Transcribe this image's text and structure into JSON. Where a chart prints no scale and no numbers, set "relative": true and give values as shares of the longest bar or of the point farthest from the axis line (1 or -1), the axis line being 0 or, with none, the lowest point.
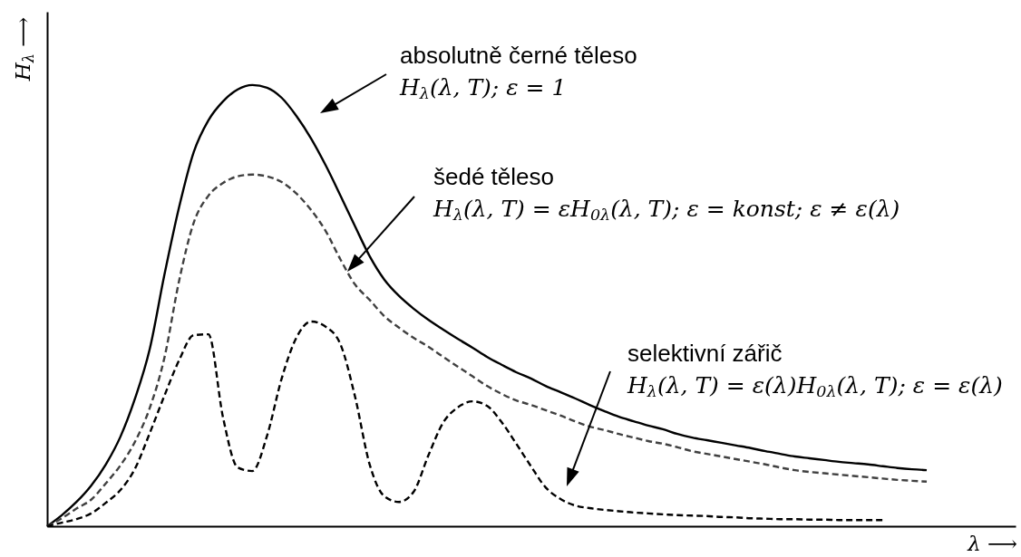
{
  "chart_data": {
    "type": "line",
    "relative": true,
    "xlabel": "λ ⟶",
    "ylabel": "H$_{λ}$ ⟶",
    "categories": [
      null,
      null,
      null,
      null,
      null,
      null,
      null,
      null,
      null,
      null,
      null,
      null,
      null,
      null,
      null,
      null,
      null,
      null,
      null,
      null,
      null,
      null,
      null,
      null,
      null,
      null,
      null,
      null,
      null,
      null,
      null,
      null,
      null,
      null,
      null,
      null,
      null,
      null,
      null,
      null,
      null,
      null,
      null,
      null,
      null,
      null,
      null,
      null,
      null,
      null,
      null,
      null,
      null,
      null,
      null,
      null,
      null,
      null,
      null,
      null,
      null
    ],
    "series": [
      {
        "color": "#000000",
        "line_style": "solid",
        "values": [
          0,
          0.025,
          0.055,
          0.092,
          0.14,
          0.203,
          0.29,
          0.402,
          0.57,
          0.723,
          0.848,
          0.92,
          0.963,
          0.99,
          1,
          0.994,
          0.971,
          0.93,
          0.879,
          0.818,
          0.75,
          0.68,
          0.612,
          0.559,
          0.522,
          0.493,
          0.468,
          0.446,
          0.425,
          0.405,
          0.384,
          0.366,
          0.349,
          0.335,
          0.318,
          0.304,
          0.29,
          0.275,
          0.261,
          0.248,
          0.238,
          0.228,
          0.22,
          0.209,
          0.201,
          0.195,
          0.189,
          0.183,
          0.177,
          0.17,
          0.164,
          0.158,
          0.154,
          0.15,
          0.146,
          0.143,
          0.14,
          0.136,
          0.132,
          0.129,
          0.127
        ]
      },
      {
        "color": "#404040",
        "line_style": "dashed",
        "values": [
          0,
          0.018,
          0.04,
          0.06,
          0.097,
          0.138,
          0.192,
          0.268,
          0.382,
          0.556,
          0.688,
          0.749,
          0.778,
          0.793,
          0.797,
          0.793,
          0.78,
          0.754,
          0.717,
          0.669,
          0.605,
          0.548,
          0.513,
          0.476,
          0.45,
          0.427,
          0.407,
          0.384,
          0.362,
          0.34,
          0.318,
          0.3,
          0.285,
          0.275,
          0.263,
          0.251,
          0.238,
          0.226,
          0.218,
          0.209,
          0.201,
          0.193,
          0.187,
          0.179,
          0.17,
          0.164,
          0.158,
          0.152,
          0.146,
          0.14,
          0.133,
          0.127,
          0.123,
          0.12,
          0.117,
          0.114,
          0.111,
          0.108,
          0.105,
          0.103,
          0.101
        ]
      },
      {
        "color": "#000000",
        "line_style": "dashed",
        "values": [
          0,
          0.008,
          0.016,
          0.029,
          0.053,
          0.082,
          0.131,
          0.211,
          0.296,
          0.376,
          0.433,
          0.435,
          0.246,
          0.133,
          0.125,
          0.205,
          0.335,
          0.427,
          0.464,
          0.452,
          0.413,
          0.294,
          0.14,
          0.068,
          0.055,
          0.078,
          0.16,
          0.234,
          0.269,
          0.283,
          0.273,
          0.236,
          0.187,
          0.136,
          0.088,
          0.062,
          0.047,
          0.041,
          0.037,
          0.034,
          0.031,
          0.029,
          0.027,
          0.025,
          0.024,
          0.023,
          0.021,
          0.02,
          0.018,
          0.017,
          0.016,
          0.016,
          0.015,
          0.015,
          0.014,
          0.014,
          0.014,
          0.014,
          null,
          null,
          null
        ]
      }
    ],
    "annotations": [
      "absolutně černé těleso",
      "H$_{λ}$(λ, T); ε = 1",
      "šedé těleso",
      "H$_{λ}$(λ, T) = εH$_{0λ}$(λ, T); ε = konst; ε ≠ ε(λ)",
      "selektivní zářič",
      "H$_{λ}$(λ, T) = ε(λ)H$_{0λ}$(λ, T); ε = ε(λ)"
    ]
  }
}
